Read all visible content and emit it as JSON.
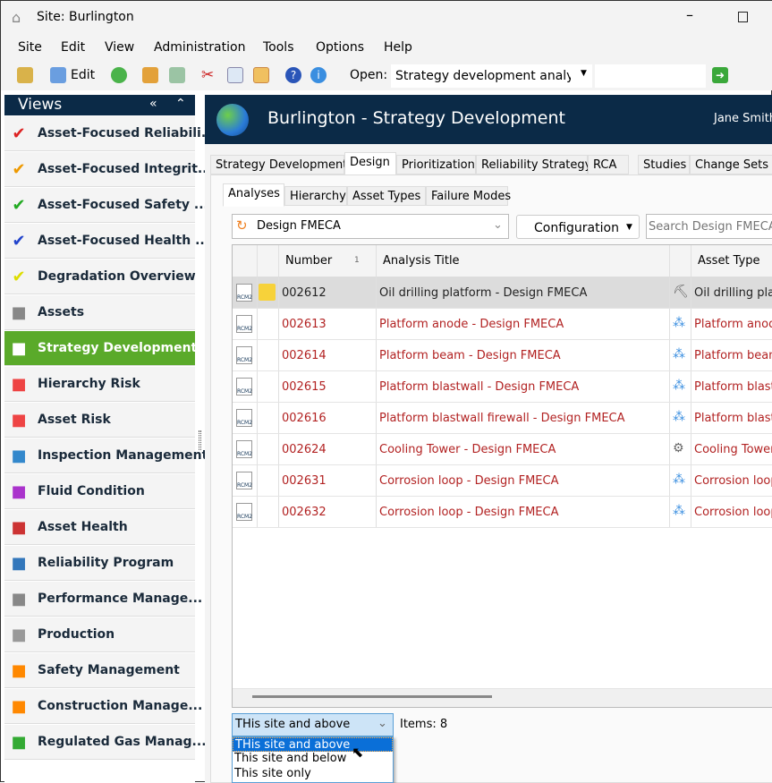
{
  "window": {
    "title": "Site: Burlington"
  },
  "menu": [
    "Site",
    "Edit",
    "View",
    "Administration",
    "Tools",
    "Options",
    "Help"
  ],
  "toolbar": {
    "edit_label": "Edit",
    "open_label": "Open:",
    "open_value": "Strategy development analysi"
  },
  "sidebar": {
    "title": "Views",
    "items": [
      {
        "label": "Asset-Focused Reliabili...",
        "icon": "red-check-icon",
        "color": "#d22"
      },
      {
        "label": "Asset-Focused Integrit...",
        "icon": "orange-check-icon",
        "color": "#e90"
      },
      {
        "label": "Asset-Focused Safety ...",
        "icon": "green-check-icon",
        "color": "#2a2"
      },
      {
        "label": "Asset-Focused Health ...",
        "icon": "blue-check-icon",
        "color": "#24c"
      },
      {
        "label": "Degradation Overview",
        "icon": "yellow-check-icon",
        "color": "#dd0"
      },
      {
        "label": "Assets",
        "icon": "gears-icon",
        "color": "#888"
      },
      {
        "label": "Strategy Development",
        "icon": "document-icon",
        "color": "#fff",
        "selected": true
      },
      {
        "label": "Hierarchy Risk",
        "icon": "heatmap-icon",
        "color": "#e44"
      },
      {
        "label": "Asset Risk",
        "icon": "heatmap-icon",
        "color": "#e44"
      },
      {
        "label": "Inspection Management",
        "icon": "gauge-icon",
        "color": "#38c"
      },
      {
        "label": "Fluid Condition",
        "icon": "flask-icon",
        "color": "#a3c"
      },
      {
        "label": "Asset Health",
        "icon": "first-aid-icon",
        "color": "#c33"
      },
      {
        "label": "Reliability Program",
        "icon": "id-card-icon",
        "color": "#37b"
      },
      {
        "label": "Performance Manage...",
        "icon": "gears-icon",
        "color": "#888"
      },
      {
        "label": "Production",
        "icon": "factory-icon",
        "color": "#999"
      },
      {
        "label": "Safety Management",
        "icon": "cone-icon",
        "color": "#f80"
      },
      {
        "label": "Construction Manage...",
        "icon": "construction-icon",
        "color": "#f80"
      },
      {
        "label": "Regulated Gas Manag...",
        "icon": "network-icon",
        "color": "#3a3"
      }
    ]
  },
  "header": {
    "title": "Burlington - Strategy Development",
    "user": "Jane Smith"
  },
  "tabs": [
    "Strategy Development",
    "Design",
    "Prioritization",
    "Reliability Strategy",
    "RCA",
    "Studies",
    "Change Sets"
  ],
  "active_tab": "Design",
  "subtabs": [
    "Analyses",
    "Hierarchy",
    "Asset Types",
    "Failure Modes"
  ],
  "active_subtab": "Analyses",
  "filter": {
    "analysis_type": "Design FMECA",
    "configuration": "Configuration",
    "search_placeholder": "Search Design FMECA"
  },
  "grid": {
    "columns": [
      "Number",
      "Analysis Title",
      "Asset Type"
    ],
    "sort_indicator": "1",
    "rows": [
      {
        "number": "002612",
        "title": "Oil drilling platform - Design FMECA",
        "asset_type": "Oil drilling platform"
      },
      {
        "number": "002613",
        "title": "Platform anode - Design FMECA",
        "asset_type": "Platform anode"
      },
      {
        "number": "002614",
        "title": "Platform beam - Design FMECA",
        "asset_type": "Platform beam"
      },
      {
        "number": "002615",
        "title": "Platform blastwall - Design FMECA",
        "asset_type": "Platform blastwall"
      },
      {
        "number": "002616",
        "title": "Platform blastwall firewall - Design FMECA",
        "asset_type": "Platform blastwall firewall"
      },
      {
        "number": "002624",
        "title": "Cooling Tower - Design FMECA",
        "asset_type": "Cooling Tower"
      },
      {
        "number": "002631",
        "title": "Corrosion loop - Design FMECA",
        "asset_type": "Corrosion loop"
      },
      {
        "number": "002632",
        "title": "Corrosion loop - Design FMECA",
        "asset_type": "Corrosion loop"
      }
    ]
  },
  "scope": {
    "selected": "THis site and above",
    "options": [
      "THis site and above",
      "This site and below",
      "This site only"
    ],
    "items_label": "Items: 8"
  }
}
